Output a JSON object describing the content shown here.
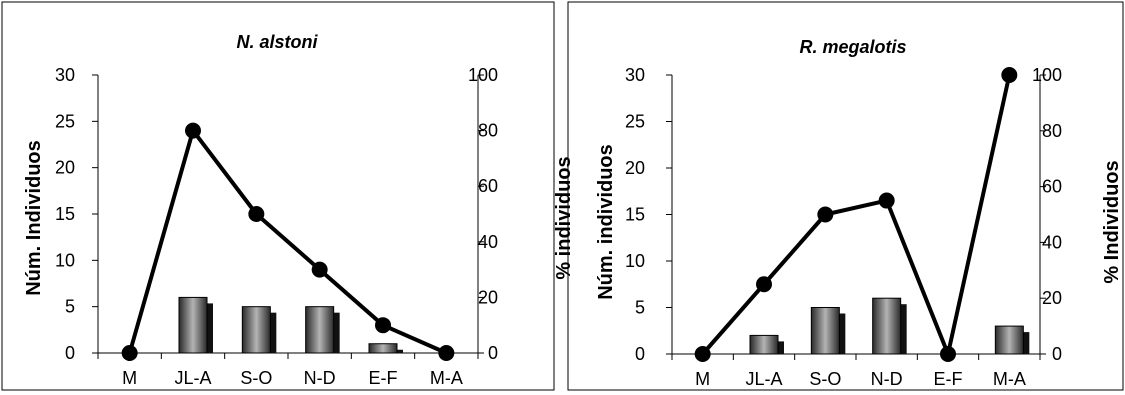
{
  "chart_data": [
    {
      "type": "bar+line",
      "title": "N. alstoni",
      "categories": [
        "M",
        "JL-A",
        "S-O",
        "N-D",
        "E-F",
        "M-A"
      ],
      "ylabel": "Núm. Individuos",
      "y2label": "% individuos",
      "ylim": [
        0,
        30
      ],
      "y2lim": [
        0,
        100
      ],
      "yticks": [
        "0",
        "5",
        "10",
        "15",
        "20",
        "25",
        "30"
      ],
      "y2ticks": [
        "0",
        "20",
        "40",
        "60",
        "80",
        "100"
      ],
      "series": [
        {
          "kind": "bar",
          "axis": "left",
          "values": [
            0,
            6,
            5,
            5,
            1,
            0
          ]
        },
        {
          "kind": "line",
          "axis": "right",
          "values": [
            0,
            80,
            50,
            30,
            10,
            0
          ]
        }
      ]
    },
    {
      "type": "bar+line",
      "title": "R. megalotis",
      "categories": [
        "M",
        "JL-A",
        "S-O",
        "N-D",
        "E-F",
        "M-A"
      ],
      "ylabel": "Núm. individuos",
      "y2label": "% Individuos",
      "ylim": [
        0,
        30
      ],
      "y2lim": [
        0,
        100
      ],
      "yticks": [
        "0",
        "5",
        "10",
        "15",
        "20",
        "25",
        "30"
      ],
      "y2ticks": [
        "0",
        "20",
        "40",
        "60",
        "80",
        "100"
      ],
      "series": [
        {
          "kind": "bar",
          "axis": "left",
          "values": [
            0,
            2,
            5,
            6,
            0,
            3
          ]
        },
        {
          "kind": "line",
          "axis": "right",
          "values": [
            0,
            25,
            50,
            55,
            0,
            100
          ]
        }
      ]
    }
  ]
}
